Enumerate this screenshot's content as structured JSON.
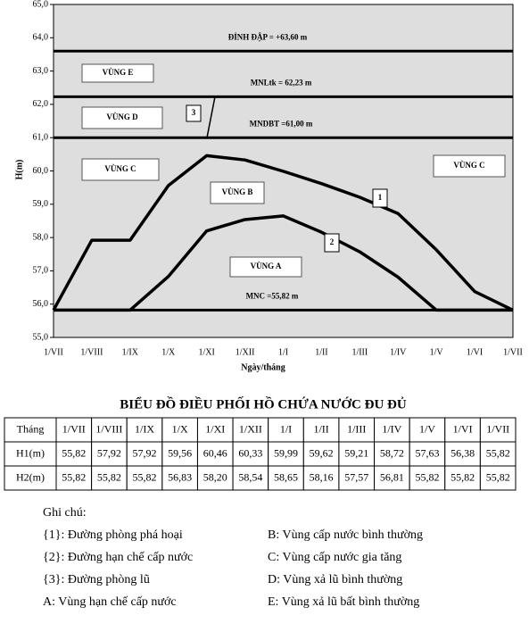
{
  "chart_data": {
    "type": "line",
    "title": "BIỂU ĐỒ ĐIỀU PHỐI HỒ CHỨA NƯỚC ĐU ĐỦ",
    "y_label": "H(m)",
    "x_label": "Ngày/tháng",
    "categories": [
      "1/VII",
      "1/VIII",
      "1/IX",
      "1/X",
      "1/XI",
      "1/XII",
      "1/I",
      "1/II",
      "1/III",
      "1/IV",
      "1/V",
      "1/VI",
      "1/VII"
    ],
    "series": [
      {
        "name": "1",
        "color": "#000000",
        "values": [
          55.82,
          57.92,
          57.92,
          59.56,
          60.46,
          60.33,
          59.99,
          59.62,
          59.21,
          58.72,
          57.63,
          56.38,
          55.82
        ]
      },
      {
        "name": "2",
        "color": "#000000",
        "values": [
          55.82,
          55.82,
          55.82,
          56.83,
          58.2,
          58.54,
          58.65,
          58.16,
          57.57,
          56.81,
          55.82,
          55.82,
          55.82
        ]
      }
    ],
    "ylim": [
      55,
      65
    ],
    "yticks": [
      {
        "value": 55,
        "label": "55,0"
      },
      {
        "value": 56,
        "label": "56,0"
      },
      {
        "value": 57,
        "label": "57,0"
      },
      {
        "value": 58,
        "label": "58,0"
      },
      {
        "value": 59,
        "label": "59,0"
      },
      {
        "value": 60,
        "label": "60,0"
      },
      {
        "value": 61,
        "label": "61,0"
      },
      {
        "value": 62,
        "label": "62,0"
      },
      {
        "value": 63,
        "label": "63,0"
      },
      {
        "value": 64,
        "label": "64,0"
      },
      {
        "value": 65,
        "label": "65,0"
      }
    ],
    "reference_lines": [
      {
        "value": 63.6,
        "label": "ĐỈNH ĐẬP = +63,60 m"
      },
      {
        "value": 62.23,
        "label": "MNLtk = 62,23 m"
      },
      {
        "value": 61.0,
        "label": "MNDBT =61,00 m"
      },
      {
        "value": 55.82,
        "label": "MNC =55,82 m"
      }
    ],
    "zones": [
      "VÙNG E",
      "VÙNG D",
      "VÙNG C",
      "VÙNG B",
      "VÙNG A",
      "VÙNG C"
    ],
    "annotations": [
      "3"
    ]
  },
  "table": {
    "header": [
      "Tháng",
      "1/VII",
      "1/VIII",
      "1/IX",
      "1/X",
      "1/XI",
      "1/XII",
      "1/I",
      "1/II",
      "1/III",
      "1/IV",
      "1/V",
      "1/VI",
      "1/VII"
    ],
    "rows": [
      [
        "H1(m)",
        "55,82",
        "57,92",
        "57,92",
        "59,56",
        "60,46",
        "60,33",
        "59,99",
        "59,62",
        "59,21",
        "58,72",
        "57,63",
        "56,38",
        "55,82"
      ],
      [
        "H2(m)",
        "55,82",
        "55,82",
        "55,82",
        "56,83",
        "58,20",
        "58,54",
        "58,65",
        "58,16",
        "57,57",
        "56,81",
        "55,82",
        "55,82",
        "55,82"
      ]
    ]
  },
  "notes": {
    "title": "Ghi chú:",
    "items": [
      "{1}: Đường phòng phá hoại",
      "B: Vùng cấp nước bình thường",
      "{2}: Đường hạn chế cấp nước",
      "C: Vùng cấp nước gia tăng",
      "{3}: Đường phòng lũ",
      "D: Vùng xả lũ bình thường",
      "A: Vùng hạn chế cấp nước",
      "E: Vùng xả lũ bất bình thường"
    ]
  }
}
